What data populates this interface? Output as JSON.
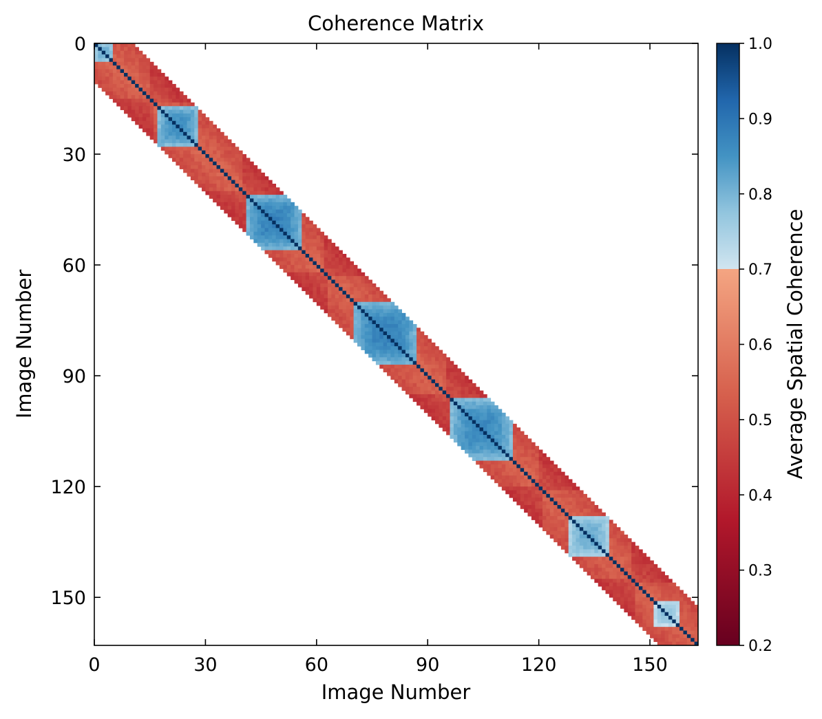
{
  "chart_data": {
    "type": "heatmap",
    "title": "Coherence Matrix",
    "xlabel": "Image Number",
    "ylabel": "Image Number",
    "xlim": [
      0,
      163
    ],
    "ylim": [
      0,
      163
    ],
    "n_images": 163,
    "band_halfwidth": 10,
    "xticks": [
      0,
      30,
      60,
      90,
      120,
      150
    ],
    "yticks": [
      0,
      30,
      60,
      90,
      120,
      150
    ],
    "xtick_labels": [
      "0",
      "30",
      "60",
      "90",
      "120",
      "150"
    ],
    "ytick_labels": [
      "0",
      "30",
      "60",
      "90",
      "120",
      "150"
    ],
    "diagonal_value": 1.0,
    "background_value": 0.5,
    "high_coherence_clusters": [
      {
        "center": 2,
        "radius": 2,
        "peak": 0.82
      },
      {
        "center": 22,
        "radius": 5,
        "peak": 0.86
      },
      {
        "center": 48,
        "radius": 7,
        "peak": 0.88
      },
      {
        "center": 78,
        "radius": 8,
        "peak": 0.88
      },
      {
        "center": 104,
        "radius": 8,
        "peak": 0.87
      },
      {
        "center": 133,
        "radius": 5,
        "peak": 0.82
      },
      {
        "center": 154,
        "radius": 3,
        "peak": 0.78
      }
    ],
    "low_coherence_breaks": [
      15,
      40,
      62,
      95,
      120,
      145
    ],
    "colorbar": {
      "label": "Average Spatial Coherence",
      "min": 0.2,
      "max": 1.0,
      "ticks": [
        0.2,
        0.3,
        0.4,
        0.5,
        0.6,
        0.7,
        0.8,
        0.9,
        1.0
      ],
      "tick_labels": [
        "0.2",
        "0.3",
        "0.4",
        "0.5",
        "0.6",
        "0.7",
        "0.8",
        "0.9",
        "1.0"
      ],
      "colormap": "diverging red-blue",
      "colors_low": [
        "#67001f",
        "#b2182b",
        "#d6604d",
        "#f4a582"
      ],
      "colors_high": [
        "#d1e5f0",
        "#92c5de",
        "#4393c3",
        "#2166ac",
        "#053061"
      ],
      "split_value": 0.7
    },
    "grid": false
  }
}
